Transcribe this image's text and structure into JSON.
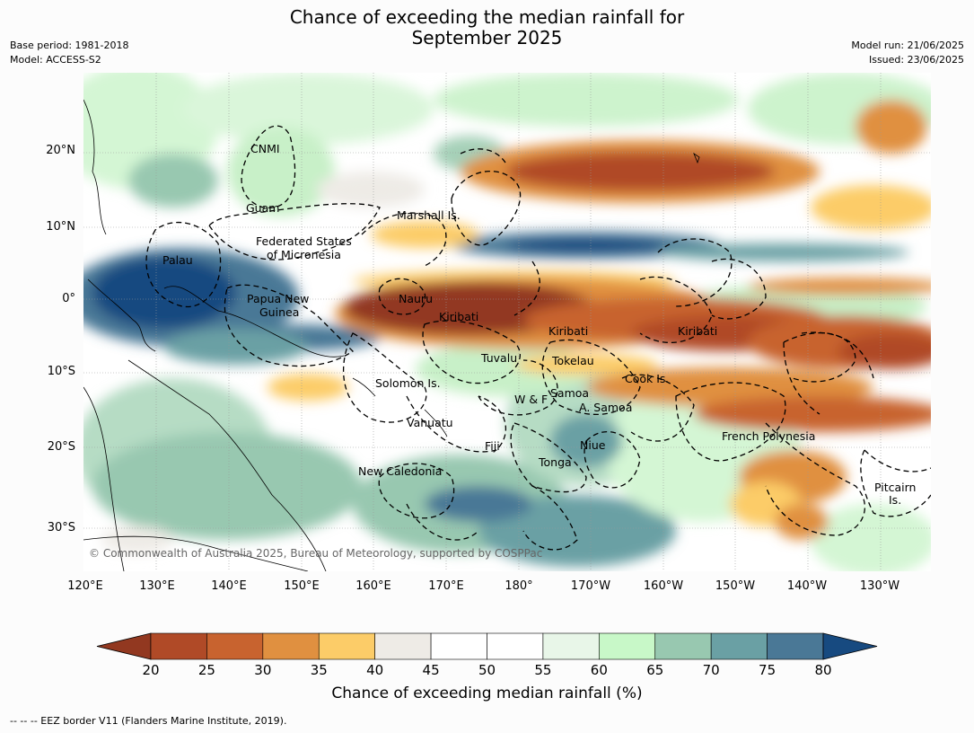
{
  "title": {
    "line1": "Chance of exceeding the median rainfall for",
    "line2": "September 2025"
  },
  "meta": {
    "base_period": "Base period: 1981-2018",
    "model": "Model: ACCESS-S2",
    "model_run": "Model run: 21/06/2025",
    "issued": "Issued: 23/06/2025"
  },
  "map": {
    "copyright": "© Commonwealth of Australia 2025, Bureau of Meteorology, supported by COSPPac",
    "lat_labels": [
      "20°N",
      "10°N",
      "0°",
      "10°S",
      "20°S",
      "30°S"
    ],
    "lon_labels": [
      "120°E",
      "130°E",
      "140°E",
      "150°E",
      "160°E",
      "170°E",
      "180°",
      "170°W",
      "160°W",
      "150°W",
      "140°W",
      "130°W"
    ],
    "places": [
      "CNMI",
      "Guam",
      "Marshall Is.",
      "Federated States",
      "of Micronesia",
      "Palau",
      "Papua New",
      "Guinea",
      "Nauru",
      "Kiribati",
      "Kiribati",
      "Kiribati",
      "Tuvalu",
      "Tokelau",
      "Solomon Is.",
      "Cook Is.",
      "Samoa",
      "W & F",
      "A. Samoa",
      "Vanuatu",
      "Fiji",
      "Niue",
      "French Polynesia",
      "Tonga",
      "New Caledonia",
      "Pitcairn",
      "Is."
    ]
  },
  "colorbar": {
    "title": "Chance of exceeding median rainfall (%)",
    "ticks": [
      "20",
      "25",
      "30",
      "35",
      "40",
      "45",
      "50",
      "55",
      "60",
      "65",
      "70",
      "75",
      "80"
    ],
    "colors": [
      "#923820",
      "#b04a27",
      "#c8632f",
      "#e09040",
      "#fccc68",
      "#eeebe6",
      "#ffffff",
      "#ffffff",
      "#e8f6e8",
      "#c8f8c8",
      "#98c8b0",
      "#6aa0a4",
      "#4a7896",
      "#174a80"
    ]
  },
  "footnote": "--  --  -- EEZ border V11 (Flanders Marine Institute, 2019)."
}
